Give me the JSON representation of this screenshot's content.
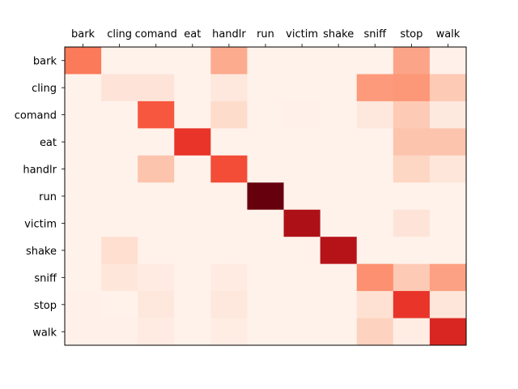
{
  "chart_data": {
    "type": "heatmap",
    "title": "",
    "xlabel": "",
    "ylabel": "",
    "x_categories": [
      "bark",
      "cling",
      "comand",
      "eat",
      "handlr",
      "run",
      "victim",
      "shake",
      "sniff",
      "stop",
      "walk"
    ],
    "y_categories": [
      "bark",
      "cling",
      "comand",
      "eat",
      "handlr",
      "run",
      "victim",
      "shake",
      "sniff",
      "stop",
      "walk"
    ],
    "x_tick_position": "top",
    "colormap": "Reds",
    "value_range": [
      0,
      1
    ],
    "values": [
      [
        0.45,
        0.02,
        0.02,
        0.02,
        0.3,
        0.02,
        0.02,
        0.02,
        0.02,
        0.32,
        0.03
      ],
      [
        0.02,
        0.1,
        0.1,
        0.02,
        0.08,
        0.02,
        0.02,
        0.02,
        0.35,
        0.36,
        0.2
      ],
      [
        0.02,
        0.02,
        0.55,
        0.02,
        0.14,
        0.02,
        0.03,
        0.02,
        0.08,
        0.2,
        0.07
      ],
      [
        0.02,
        0.02,
        0.02,
        0.65,
        0.02,
        0.02,
        0.02,
        0.02,
        0.02,
        0.22,
        0.22
      ],
      [
        0.02,
        0.02,
        0.22,
        0.02,
        0.58,
        0.02,
        0.02,
        0.02,
        0.02,
        0.16,
        0.09
      ],
      [
        0.02,
        0.02,
        0.02,
        0.02,
        0.02,
        1.0,
        0.02,
        0.02,
        0.02,
        0.02,
        0.02
      ],
      [
        0.02,
        0.02,
        0.02,
        0.02,
        0.02,
        0.02,
        0.85,
        0.02,
        0.02,
        0.1,
        0.02
      ],
      [
        0.02,
        0.13,
        0.02,
        0.02,
        0.02,
        0.02,
        0.02,
        0.82,
        0.02,
        0.02,
        0.02
      ],
      [
        0.02,
        0.09,
        0.06,
        0.02,
        0.06,
        0.02,
        0.02,
        0.02,
        0.38,
        0.2,
        0.33
      ],
      [
        0.03,
        0.02,
        0.08,
        0.02,
        0.08,
        0.02,
        0.02,
        0.02,
        0.12,
        0.65,
        0.09
      ],
      [
        0.03,
        0.03,
        0.06,
        0.02,
        0.05,
        0.02,
        0.02,
        0.02,
        0.17,
        0.05,
        0.7
      ]
    ]
  }
}
